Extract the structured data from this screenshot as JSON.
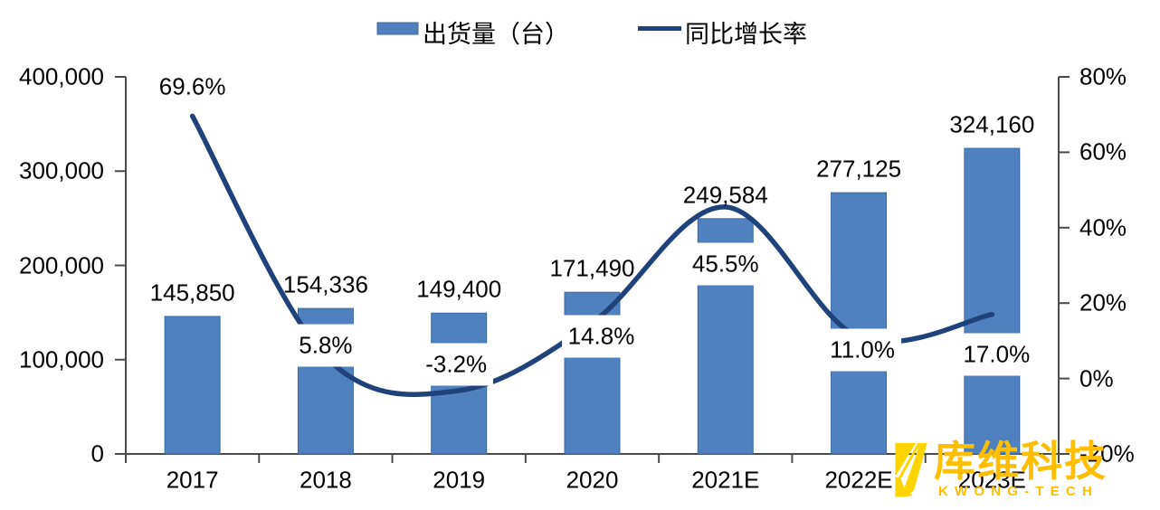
{
  "legend": {
    "bars_label": "出货量（台）",
    "line_label": "同比增长率"
  },
  "watermark": {
    "cn": "库维科技",
    "en": "KWONG-TECH",
    "color": "#FFBE00",
    "logo_color": "#FFD400"
  },
  "colors": {
    "bar": "#4E81BD",
    "bar_border": "#3A6AA5",
    "line": "#20427A",
    "axis": "#4a4a4a",
    "text": "#000000"
  },
  "chart_data": {
    "type": "bar+line",
    "categories": [
      "2017",
      "2018",
      "2019",
      "2020",
      "2021E",
      "2022E",
      "2023E"
    ],
    "series": [
      {
        "name": "出货量（台）",
        "type": "bar",
        "axis": "left",
        "values": [
          145850,
          154336,
          149400,
          171490,
          249584,
          277125,
          324160
        ],
        "labels": [
          "145,850",
          "154,336",
          "149,400",
          "171,490",
          "249,584",
          "277,125",
          "324,160"
        ]
      },
      {
        "name": "同比增长率",
        "type": "line",
        "axis": "right",
        "values": [
          0.696,
          0.058,
          -0.032,
          0.148,
          0.455,
          0.11,
          0.17
        ],
        "labels": [
          "69.6%",
          "5.8%",
          "-3.2%",
          "14.8%",
          "45.5%",
          "11.0%",
          "17.0%"
        ]
      }
    ],
    "left_axis": {
      "min": 0,
      "max": 400000,
      "tick_labels": [
        "400,000",
        "300,000",
        "200,000",
        "100,000",
        "0"
      ]
    },
    "right_axis": {
      "min": -0.2,
      "max": 0.8,
      "tick_labels": [
        "80%",
        "60%",
        "40%",
        "20%",
        "0%",
        "-20%"
      ]
    },
    "grid": false,
    "legend_position": "top"
  }
}
